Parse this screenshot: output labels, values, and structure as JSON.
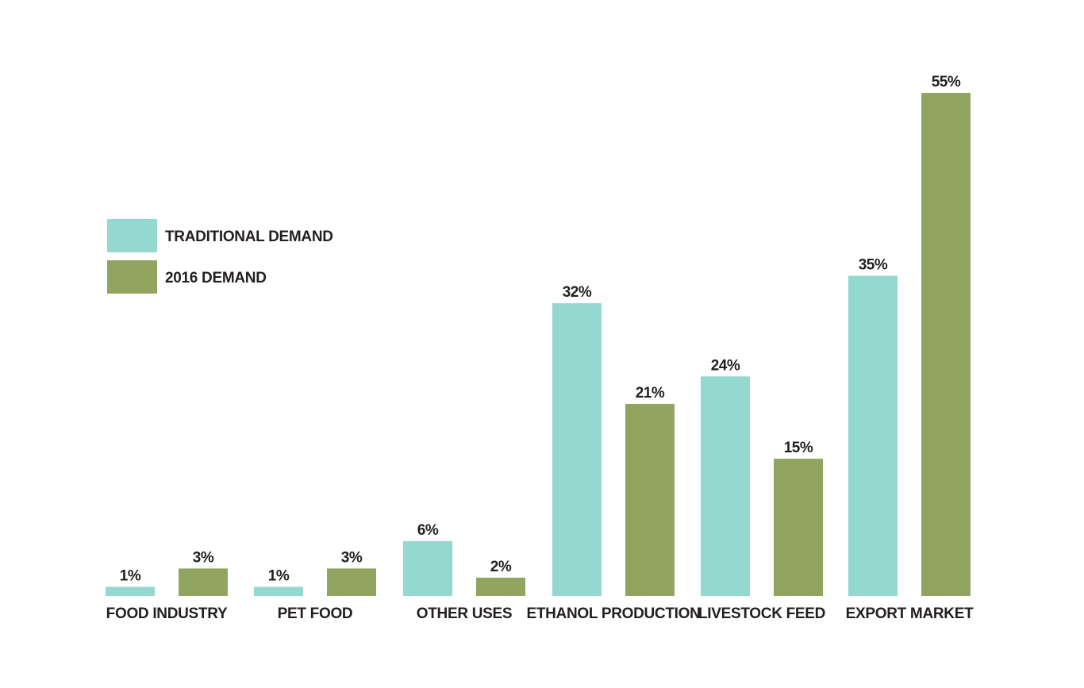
{
  "chart_data": {
    "type": "bar",
    "categories": [
      "FOOD INDUSTRY",
      "PET FOOD",
      "OTHER USES",
      "ETHANOL PRODUCTION",
      "LIVESTOCK FEED",
      "EXPORT MARKET"
    ],
    "series": [
      {
        "name": "TRADITIONAL DEMAND",
        "color": "#93d9cf",
        "values": [
          1,
          1,
          6,
          32,
          24,
          35
        ],
        "labels": [
          "1%",
          "1%",
          "6%",
          "32%",
          "24%",
          "35%"
        ]
      },
      {
        "name": "2016 DEMAND",
        "color": "#91a561",
        "values": [
          3,
          3,
          2,
          21,
          15,
          55
        ],
        "labels": [
          "3%",
          "3%",
          "2%",
          "21%",
          "15%",
          "55%"
        ]
      }
    ],
    "legend_position": "left",
    "grid": false,
    "axes_visible": false
  }
}
